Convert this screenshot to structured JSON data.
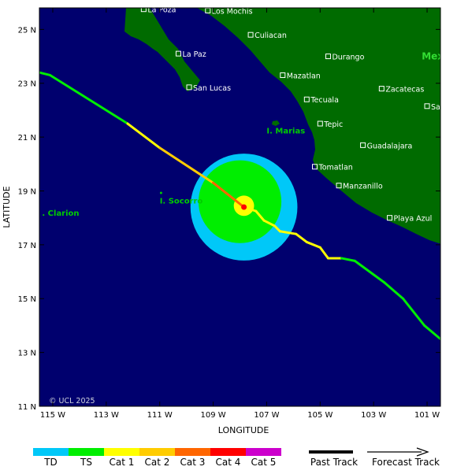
{
  "map": {
    "lon_range": [
      -115.5,
      -100.5
    ],
    "lat_range": [
      11,
      25.8
    ],
    "xlabel": "LONGITUDE",
    "ylabel": "LATITUDE",
    "copyright": "© UCL 2025",
    "lat_ticks": [
      {
        "value": 25,
        "label": "25 N"
      },
      {
        "value": 23,
        "label": "23 N"
      },
      {
        "value": 21,
        "label": "21 N"
      },
      {
        "value": 19,
        "label": "19 N"
      },
      {
        "value": 17,
        "label": "17 N"
      },
      {
        "value": 15,
        "label": "15 N"
      },
      {
        "value": 13,
        "label": "13 N"
      },
      {
        "value": 11,
        "label": "11 N"
      }
    ],
    "lon_ticks": [
      {
        "value": -115,
        "label": "115 W"
      },
      {
        "value": -113,
        "label": "113 W"
      },
      {
        "value": -111,
        "label": "111 W"
      },
      {
        "value": -109,
        "label": "109 W"
      },
      {
        "value": -107,
        "label": "107 W"
      },
      {
        "value": -105,
        "label": "105 W"
      },
      {
        "value": -103,
        "label": "103 W"
      },
      {
        "value": -101,
        "label": "101 W"
      }
    ],
    "colors": {
      "ocean": "#00006e",
      "land": "#006b00",
      "td": "#00c8f8",
      "ts": "#00ee00",
      "cat1": "#ffff00",
      "cat2": "#ffcc00",
      "cat3": "#ff6600",
      "cat4": "#ff0000",
      "cat5": "#cc00cc"
    },
    "cities": [
      {
        "name": "La Poza",
        "lon": -111.6,
        "lat": 25.75
      },
      {
        "name": "Los Mochis",
        "lon": -109.2,
        "lat": 25.7
      },
      {
        "name": "Culiacan",
        "lon": -107.6,
        "lat": 24.8
      },
      {
        "name": "La Paz",
        "lon": -110.3,
        "lat": 24.1
      },
      {
        "name": "Durango",
        "lon": -104.7,
        "lat": 24.0
      },
      {
        "name": "Mazatlan",
        "lon": -106.4,
        "lat": 23.3
      },
      {
        "name": "San Lucas",
        "lon": -109.9,
        "lat": 22.85
      },
      {
        "name": "Zacatecas",
        "lon": -102.7,
        "lat": 22.8
      },
      {
        "name": "Tecuala",
        "lon": -105.5,
        "lat": 22.4
      },
      {
        "name": "San Luis Potosi",
        "lon": -101.0,
        "lat": 22.15
      },
      {
        "name": "Tepic",
        "lon": -105.0,
        "lat": 21.5
      },
      {
        "name": "Guadalajara",
        "lon": -103.4,
        "lat": 20.7
      },
      {
        "name": "Tomatlan",
        "lon": -105.2,
        "lat": 19.9
      },
      {
        "name": "Manzanillo",
        "lon": -104.3,
        "lat": 19.2
      },
      {
        "name": "Playa Azul",
        "lon": -102.4,
        "lat": 18.0
      }
    ],
    "islands": [
      {
        "name": "I. Marias",
        "lon": -107.0,
        "lat": 21.25
      },
      {
        "name": "I. Socorro",
        "lon": -111.0,
        "lat": 18.65
      },
      {
        "name": ". Clarion",
        "lon": -115.4,
        "lat": 18.2
      }
    ],
    "country_label": {
      "name": "Mexic",
      "lon": -101.2,
      "lat": 24.0
    },
    "storm": {
      "center": {
        "lon": -107.85,
        "lat": 18.4
      },
      "td_radius_deg": 2.0,
      "ts_radius_deg": 1.55,
      "hurricane_radius_deg": 0.38,
      "track": [
        {
          "lon": -115.5,
          "lat": 23.4,
          "cat": "ts"
        },
        {
          "lon": -115.1,
          "lat": 23.3,
          "cat": "ts"
        },
        {
          "lon": -112.2,
          "lat": 21.5,
          "cat": "cat1"
        },
        {
          "lon": -111.0,
          "lat": 20.6,
          "cat": "cat2"
        },
        {
          "lon": -109.0,
          "lat": 19.3,
          "cat": "cat3"
        },
        {
          "lon": -107.85,
          "lat": 18.4,
          "cat": "cat1"
        },
        {
          "lon": -107.4,
          "lat": 18.25,
          "cat": "cat1"
        },
        {
          "lon": -107.1,
          "lat": 17.9,
          "cat": "cat1"
        },
        {
          "lon": -106.7,
          "lat": 17.7,
          "cat": "cat1"
        },
        {
          "lon": -106.5,
          "lat": 17.5,
          "cat": "cat1"
        },
        {
          "lon": -105.9,
          "lat": 17.4,
          "cat": "cat1"
        },
        {
          "lon": -105.5,
          "lat": 17.1,
          "cat": "cat1"
        },
        {
          "lon": -105.0,
          "lat": 16.9,
          "cat": "cat1"
        },
        {
          "lon": -104.7,
          "lat": 16.5,
          "cat": "cat1"
        },
        {
          "lon": -104.2,
          "lat": 16.5,
          "cat": "ts"
        },
        {
          "lon": -103.7,
          "lat": 16.4,
          "cat": "ts"
        },
        {
          "lon": -102.6,
          "lat": 15.6,
          "cat": "ts"
        },
        {
          "lon": -101.9,
          "lat": 15.0,
          "cat": "ts"
        },
        {
          "lon": -101.1,
          "lat": 14.0,
          "cat": "ts"
        },
        {
          "lon": -100.5,
          "lat": 13.5,
          "cat": "ts"
        }
      ]
    },
    "legend": {
      "categories": [
        {
          "label": "TD",
          "key": "td"
        },
        {
          "label": "TS",
          "key": "ts"
        },
        {
          "label": "Cat 1",
          "key": "cat1"
        },
        {
          "label": "Cat 2",
          "key": "cat2"
        },
        {
          "label": "Cat 3",
          "key": "cat3"
        },
        {
          "label": "Cat 4",
          "key": "cat4"
        },
        {
          "label": "Cat 5",
          "key": "cat5"
        }
      ],
      "past_track": "Past Track",
      "forecast_track": "Forecast Track"
    }
  }
}
